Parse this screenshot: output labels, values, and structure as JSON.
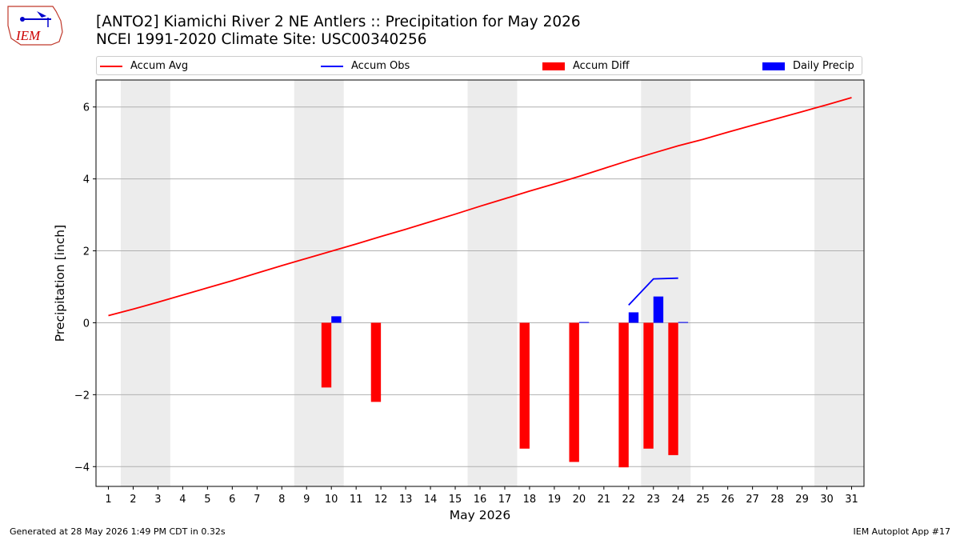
{
  "title": {
    "line1": "[ANTO2] Kiamichi River 2 NE Antlers :: Precipitation for May 2026",
    "line2": "NCEI 1991-2020 Climate Site: USC00340256"
  },
  "logo": {
    "text": "IEM"
  },
  "legend": [
    {
      "label": "Accum Avg",
      "kind": "line",
      "color": "#ff0000"
    },
    {
      "label": "Accum Obs",
      "kind": "line",
      "color": "#0000ff"
    },
    {
      "label": "Accum Diff",
      "kind": "box",
      "color": "#ff0000"
    },
    {
      "label": "Daily Precip",
      "kind": "box",
      "color": "#0000ff"
    }
  ],
  "chart_data": {
    "type": "bar",
    "xlabel": "May 2026",
    "ylabel": "Precipitation [inch]",
    "xlim": [
      0.5,
      31.5
    ],
    "ylim": [
      -4.55,
      6.75
    ],
    "yticks": [
      -4,
      -2,
      0,
      2,
      4,
      6
    ],
    "ytick_labels": [
      "−4",
      "−2",
      "0",
      "2",
      "4",
      "6"
    ],
    "xticks": [
      1,
      2,
      3,
      4,
      5,
      6,
      7,
      8,
      9,
      10,
      11,
      12,
      13,
      14,
      15,
      16,
      17,
      18,
      19,
      20,
      21,
      22,
      23,
      24,
      25,
      26,
      27,
      28,
      29,
      30,
      31
    ],
    "weekend_bands": [
      [
        1.5,
        3.5
      ],
      [
        8.5,
        10.5
      ],
      [
        15.5,
        17.5
      ],
      [
        22.5,
        24.5
      ],
      [
        29.5,
        31.5
      ]
    ],
    "grid": "horizontal",
    "series": [
      {
        "name": "Accum Avg",
        "type": "line",
        "color": "#ff0000",
        "x": [
          1,
          2,
          3,
          4,
          5,
          6,
          7,
          8,
          9,
          10,
          11,
          12,
          13,
          14,
          15,
          16,
          17,
          18,
          19,
          20,
          21,
          22,
          23,
          24,
          25,
          26,
          27,
          28,
          29,
          30,
          31
        ],
        "values": [
          0.2,
          0.38,
          0.57,
          0.77,
          0.97,
          1.17,
          1.38,
          1.59,
          1.79,
          1.99,
          2.19,
          2.4,
          2.6,
          2.81,
          3.02,
          3.24,
          3.45,
          3.66,
          3.86,
          4.07,
          4.29,
          4.51,
          4.72,
          4.92,
          5.1,
          5.3,
          5.49,
          5.68,
          5.87,
          6.06,
          6.26
        ]
      },
      {
        "name": "Accum Obs",
        "type": "line",
        "color": "#0000ff",
        "x": [
          22,
          23,
          24
        ],
        "values": [
          0.49,
          1.22,
          1.24
        ]
      },
      {
        "name": "Accum Diff",
        "type": "bar",
        "color": "#ff0000",
        "x": [
          10,
          12,
          18,
          20,
          22,
          23,
          24
        ],
        "values": [
          -1.8,
          -2.2,
          -3.5,
          -3.87,
          -4.02,
          -3.5,
          -3.68
        ]
      },
      {
        "name": "Daily Precip",
        "type": "bar",
        "color": "#0000ff",
        "x": [
          10,
          20,
          22,
          23,
          24
        ],
        "values": [
          0.18,
          0.02,
          0.29,
          0.73,
          0.02
        ]
      }
    ]
  },
  "footer": {
    "left": "Generated at 28 May 2026 1:49 PM CDT in 0.32s",
    "right": "IEM Autoplot App #17"
  }
}
